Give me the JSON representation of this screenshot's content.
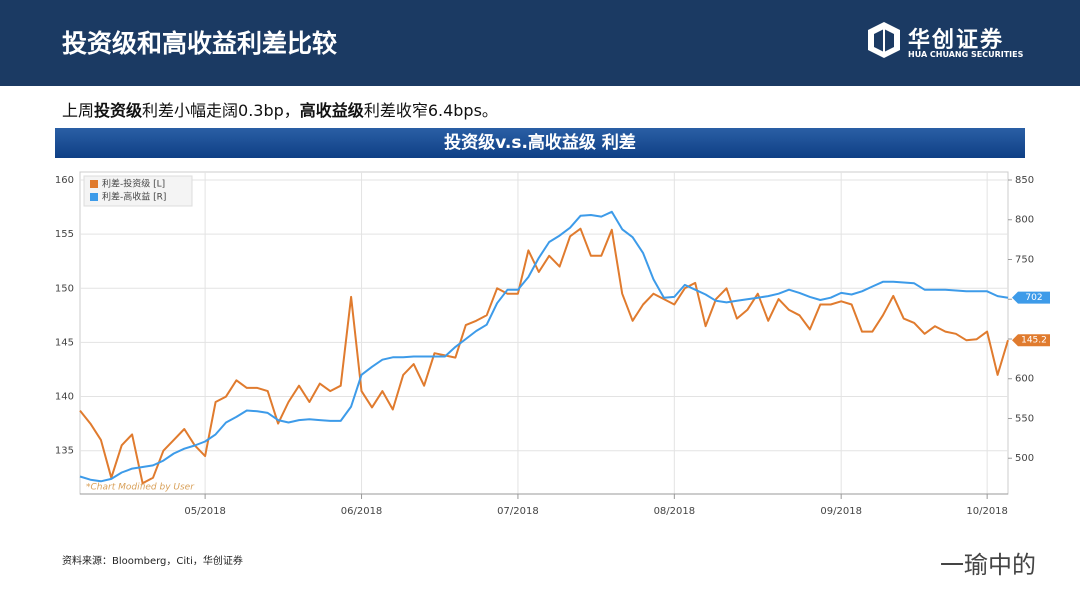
{
  "header": {
    "title": "投资级和高收益利差比较",
    "logo": {
      "name": "华创证券",
      "english": "HUA CHUANG SECURITIES"
    }
  },
  "summary": [
    "上周",
    "投资级",
    "利差小幅走阔0.3bp，",
    "高收益级",
    "利差收窄6.4bps。"
  ],
  "chart_data": {
    "type": "line",
    "title": "投资级v.s.高收益级 利差",
    "note": "*Chart Modified by User",
    "categories": [
      null,
      null,
      null,
      null,
      null,
      null,
      null,
      null,
      null,
      null,
      null,
      null,
      "05/2018",
      null,
      null,
      null,
      null,
      null,
      null,
      null,
      null,
      null,
      null,
      null,
      null,
      null,
      null,
      "06/2018",
      null,
      null,
      null,
      null,
      null,
      null,
      null,
      null,
      null,
      null,
      null,
      null,
      null,
      null,
      "07/2018",
      null,
      null,
      null,
      null,
      null,
      null,
      null,
      null,
      null,
      null,
      null,
      null,
      null,
      null,
      "08/2018",
      null,
      null,
      null,
      null,
      null,
      null,
      null,
      null,
      null,
      null,
      null,
      null,
      null,
      null,
      null,
      "09/2018",
      null,
      null,
      null,
      null,
      null,
      null,
      null,
      null,
      null,
      null,
      null,
      null,
      null,
      "10/2018",
      null,
      null
    ],
    "series": [
      {
        "name": "利差-投资级 [L]",
        "color": "#e07b2e",
        "axis": "y",
        "values": [
          138.7,
          137.5,
          136,
          132.5,
          135.5,
          136.5,
          132,
          132.5,
          135,
          136,
          137,
          135.5,
          134.5,
          139.5,
          140,
          141.5,
          140.8,
          140.8,
          140.5,
          137.5,
          139.5,
          141,
          139.5,
          141.2,
          140.5,
          141,
          149.2,
          140.5,
          139,
          140.5,
          138.8,
          142,
          143,
          141,
          144,
          143.8,
          143.6,
          146.6,
          147,
          147.5,
          150,
          149.5,
          149.5,
          153.5,
          151.5,
          153,
          152,
          154.8,
          155.5,
          153,
          153,
          155.4,
          149.5,
          147,
          148.5,
          149.5,
          149,
          148.5,
          150,
          150.5,
          146.5,
          149,
          150,
          147.2,
          148,
          149.5,
          147,
          149,
          148,
          147.5,
          146.2,
          148.5,
          148.5,
          148.8,
          148.5,
          146,
          146,
          147.5,
          149.3,
          147.2,
          146.8,
          145.8,
          146.5,
          146,
          145.8,
          145.2,
          145.3,
          146,
          142,
          145.2
        ]
      },
      {
        "name": "利差-高收益 [R]",
        "color": "#3d9be9",
        "axis": "y2",
        "values": [
          477,
          473,
          471,
          474,
          482,
          487,
          489,
          491,
          497,
          506,
          512,
          516,
          521,
          530,
          545,
          552,
          560,
          559,
          557,
          548,
          545,
          548,
          549,
          548,
          547,
          547,
          565,
          605,
          615,
          624,
          627,
          627,
          628,
          628,
          628,
          628,
          640,
          650,
          660,
          668,
          695,
          712,
          712,
          728,
          752,
          772,
          780,
          790,
          805,
          806,
          804,
          810,
          788,
          778,
          758,
          725,
          702,
          703,
          718,
          712,
          706,
          698,
          696,
          698,
          700,
          702,
          704,
          707,
          712,
          708,
          703,
          699,
          702,
          708,
          706,
          710,
          716,
          722,
          722,
          721,
          720,
          712,
          712,
          712,
          711,
          710,
          710,
          710,
          704,
          702
        ]
      }
    ],
    "ylim": [
      131,
      160
    ],
    "yticks": [
      135,
      140,
      145,
      150,
      155,
      160
    ],
    "y2lim": [
      455,
      850
    ],
    "y2ticks": [
      500,
      550,
      600,
      650,
      700,
      750,
      800,
      850
    ],
    "grid": true
  },
  "source": "资料来源：Bloomberg，Citi，华创证券",
  "watermark": "一瑜中的"
}
